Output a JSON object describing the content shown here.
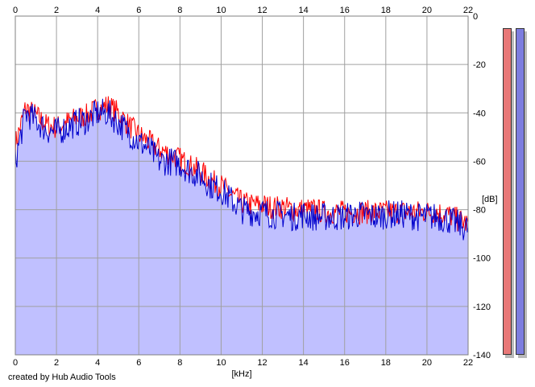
{
  "chart_data": {
    "type": "area",
    "xlabel": "[kHz]",
    "ylabel": "[dB]",
    "xlim": [
      0,
      22
    ],
    "ylim": [
      -140,
      0
    ],
    "x_ticks": [
      "0",
      "2",
      "4",
      "6",
      "8",
      "10",
      "12",
      "14",
      "16",
      "18",
      "20",
      "22"
    ],
    "y_ticks": [
      "0",
      "-20",
      "-40",
      "-60",
      "-80",
      "-100",
      "-120",
      "-140"
    ],
    "grid": true,
    "series": [
      {
        "color": "#ff0000",
        "x": [
          0,
          0.5,
          1,
          1.5,
          2,
          2.5,
          3,
          3.5,
          4,
          4.5,
          5,
          5.5,
          6,
          6.5,
          7,
          7.5,
          8,
          8.5,
          9,
          9.5,
          10,
          10.5,
          11,
          11.5,
          12,
          12.5,
          13,
          13.5,
          14,
          14.5,
          15,
          15.5,
          16,
          16.5,
          17,
          17.5,
          18,
          18.5,
          19,
          19.5,
          20,
          20.5,
          21,
          21.5,
          22
        ],
        "values": [
          -53,
          -38,
          -41,
          -45,
          -46,
          -44,
          -42,
          -41,
          -38,
          -37,
          -40,
          -45,
          -49,
          -52,
          -55,
          -57,
          -59,
          -62,
          -64,
          -68,
          -70,
          -74,
          -77,
          -78,
          -78,
          -79,
          -79,
          -80,
          -80,
          -80,
          -81,
          -81,
          -81,
          -81,
          -81,
          -81,
          -81,
          -81,
          -81,
          -81,
          -81,
          -81,
          -82,
          -84,
          -86
        ]
      },
      {
        "color": "#0000cc",
        "x": [
          0,
          0.5,
          1,
          1.5,
          2,
          2.5,
          3,
          3.5,
          4,
          4.5,
          5,
          5.5,
          6,
          6.5,
          7,
          7.5,
          8,
          8.5,
          9,
          9.5,
          10,
          10.5,
          11,
          11.5,
          12,
          12.5,
          13,
          13.5,
          14,
          14.5,
          15,
          15.5,
          16,
          16.5,
          17,
          17.5,
          18,
          18.5,
          19,
          19.5,
          20,
          20.5,
          21,
          21.5,
          22
        ],
        "values": [
          -60,
          -40,
          -43,
          -47,
          -48,
          -46,
          -44,
          -43,
          -40,
          -40,
          -44,
          -48,
          -52,
          -55,
          -60,
          -60,
          -61,
          -64,
          -66,
          -70,
          -72,
          -76,
          -80,
          -81,
          -81,
          -82,
          -82,
          -83,
          -82,
          -83,
          -83,
          -83,
          -83,
          -82,
          -82,
          -83,
          -82,
          -82,
          -82,
          -83,
          -83,
          -83,
          -84,
          -86,
          -88
        ]
      }
    ],
    "fill_color": "#c0c0ff"
  },
  "footer": {
    "credit": "created by Hub Audio Tools"
  },
  "meters": [
    {
      "color": "#e87878",
      "level": 0.97
    },
    {
      "color": "#7d7ddf",
      "level": 0.97
    }
  ]
}
